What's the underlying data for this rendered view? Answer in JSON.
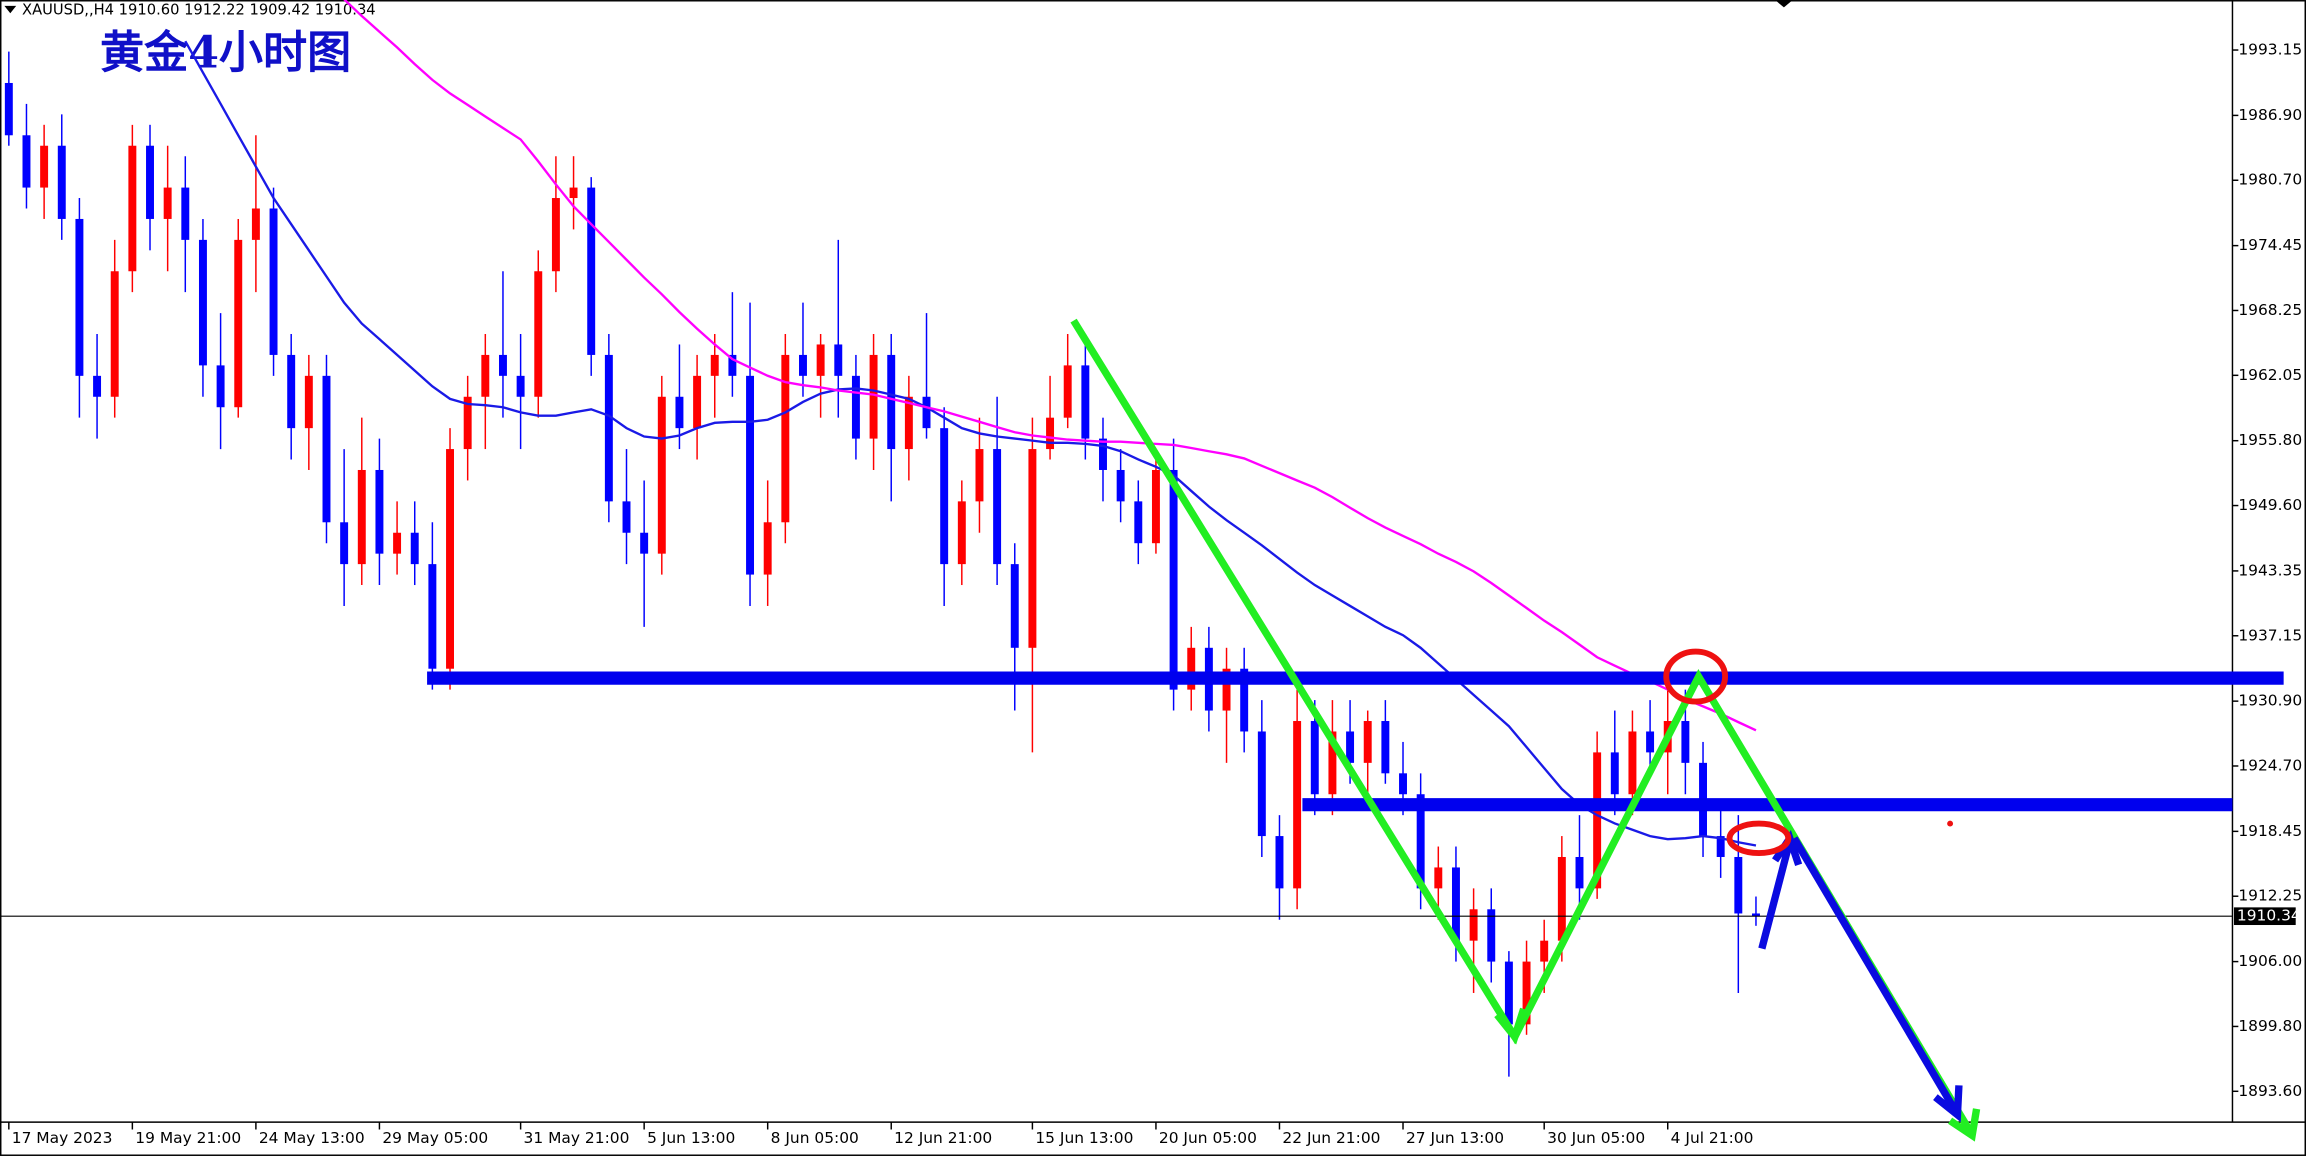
{
  "chart_data": {
    "type": "candlestick",
    "header": "XAUUSD,,H4  1910.60 1912.22 1909.42 1910.34",
    "title": "黄金4小时图",
    "up_color": "#ff0000",
    "down_color": "#0000ff",
    "xlim": [
      -0.5,
      126
    ],
    "ylim": [
      1890.65,
      1997.93
    ],
    "xticks": [
      {
        "value": 0,
        "label": "17 May 2023"
      },
      {
        "value": 7,
        "label": "19 May 21:00"
      },
      {
        "value": 14,
        "label": "24 May 13:00"
      },
      {
        "value": 21,
        "label": "29 May 05:00"
      },
      {
        "value": 29,
        "label": "31 May 21:00"
      },
      {
        "value": 36,
        "label": "5 Jun 13:00"
      },
      {
        "value": 43,
        "label": "8 Jun 05:00"
      },
      {
        "value": 50,
        "label": "12 Jun 21:00"
      },
      {
        "value": 58,
        "label": "15 Jun 13:00"
      },
      {
        "value": 65,
        "label": "20 Jun 05:00"
      },
      {
        "value": 72,
        "label": "22 Jun 21:00"
      },
      {
        "value": 79,
        "label": "27 Jun 13:00"
      },
      {
        "value": 87,
        "label": "30 Jun 05:00"
      },
      {
        "value": 94,
        "label": "4 Jul 21:00"
      }
    ],
    "yticks": [
      1993.15,
      {
        "value": 1986.9,
        "label": "1986.90"
      },
      {
        "value": 1980.7,
        "label": "1980.70"
      },
      1974.45,
      1968.25,
      1962.05,
      {
        "value": 1955.8,
        "label": "1955.80"
      },
      {
        "value": 1949.6,
        "label": "1949.60"
      },
      1943.35,
      1937.15,
      {
        "value": 1930.9,
        "label": "1930.90"
      },
      {
        "value": 1924.7,
        "label": "1924.70"
      },
      1918.45,
      1912.25,
      {
        "value": 1906,
        "label": "1906.00"
      },
      {
        "value": 1899.8,
        "label": "1899.80"
      },
      {
        "value": 1893.6,
        "label": "1893.60"
      }
    ],
    "last_price": 1910.34,
    "candles": [
      [
        1990,
        1993,
        1984,
        1985
      ],
      [
        1985,
        1988,
        1978,
        1980
      ],
      [
        1980,
        1986,
        1977,
        1984
      ],
      [
        1984,
        1987,
        1975,
        1977
      ],
      [
        1977,
        1979,
        1958,
        1962
      ],
      [
        1962,
        1966,
        1956,
        1960
      ],
      [
        1960,
        1975,
        1958,
        1972
      ],
      [
        1972,
        1986,
        1970,
        1984
      ],
      [
        1984,
        1986,
        1974,
        1977
      ],
      [
        1977,
        1984,
        1972,
        1980
      ],
      [
        1980,
        1983,
        1970,
        1975
      ],
      [
        1975,
        1977,
        1960,
        1963
      ],
      [
        1963,
        1968,
        1955,
        1959
      ],
      [
        1959,
        1977,
        1958,
        1975
      ],
      [
        1975,
        1985,
        1970,
        1978
      ],
      [
        1978,
        1980,
        1962,
        1964
      ],
      [
        1964,
        1966,
        1954,
        1957
      ],
      [
        1957,
        1964,
        1953,
        1962
      ],
      [
        1962,
        1964,
        1946,
        1948
      ],
      [
        1948,
        1955,
        1940,
        1944
      ],
      [
        1944,
        1958,
        1942,
        1953
      ],
      [
        1953,
        1956,
        1942,
        1945
      ],
      [
        1945,
        1950,
        1943,
        1947
      ],
      [
        1947,
        1950,
        1942,
        1944
      ],
      [
        1944,
        1948,
        1932,
        1934
      ],
      [
        1934,
        1957,
        1932,
        1955
      ],
      [
        1955,
        1962,
        1952,
        1960
      ],
      [
        1960,
        1966,
        1955,
        1964
      ],
      [
        1964,
        1972,
        1958,
        1962
      ],
      [
        1962,
        1966,
        1955,
        1960
      ],
      [
        1960,
        1974,
        1958,
        1972
      ],
      [
        1972,
        1983,
        1970,
        1979
      ],
      [
        1979,
        1983,
        1976,
        1980
      ],
      [
        1980,
        1981,
        1962,
        1964
      ],
      [
        1964,
        1966,
        1948,
        1950
      ],
      [
        1950,
        1955,
        1944,
        1947
      ],
      [
        1947,
        1952,
        1938,
        1945
      ],
      [
        1945,
        1962,
        1943,
        1960
      ],
      [
        1960,
        1965,
        1955,
        1957
      ],
      [
        1957,
        1964,
        1954,
        1962
      ],
      [
        1962,
        1966,
        1958,
        1964
      ],
      [
        1964,
        1970,
        1960,
        1962
      ],
      [
        1962,
        1969,
        1940,
        1943
      ],
      [
        1943,
        1952,
        1940,
        1948
      ],
      [
        1948,
        1966,
        1946,
        1964
      ],
      [
        1964,
        1969,
        1960,
        1962
      ],
      [
        1962,
        1966,
        1958,
        1965
      ],
      [
        1965,
        1975,
        1958,
        1962
      ],
      [
        1962,
        1964,
        1954,
        1956
      ],
      [
        1956,
        1966,
        1953,
        1964
      ],
      [
        1964,
        1966,
        1950,
        1955
      ],
      [
        1955,
        1962,
        1952,
        1960
      ],
      [
        1960,
        1968,
        1956,
        1957
      ],
      [
        1957,
        1959,
        1940,
        1944
      ],
      [
        1944,
        1952,
        1942,
        1950
      ],
      [
        1950,
        1958,
        1947,
        1955
      ],
      [
        1955,
        1960,
        1942,
        1944
      ],
      [
        1944,
        1946,
        1930,
        1936
      ],
      [
        1936,
        1958,
        1926,
        1955
      ],
      [
        1955,
        1962,
        1954,
        1958
      ],
      [
        1958,
        1966,
        1957,
        1963
      ],
      [
        1963,
        1966,
        1954,
        1956
      ],
      [
        1956,
        1958,
        1950,
        1953
      ],
      [
        1953,
        1955,
        1948,
        1950
      ],
      [
        1950,
        1952,
        1944,
        1946
      ],
      [
        1946,
        1955,
        1945,
        1953
      ],
      [
        1953,
        1956,
        1930,
        1932
      ],
      [
        1932,
        1938,
        1930,
        1936
      ],
      [
        1936,
        1938,
        1928,
        1930
      ],
      [
        1930,
        1936,
        1925,
        1934
      ],
      [
        1934,
        1936,
        1926,
        1928
      ],
      [
        1928,
        1931,
        1916,
        1918
      ],
      [
        1918,
        1920,
        1910,
        1913
      ],
      [
        1913,
        1932,
        1911,
        1929
      ],
      [
        1929,
        1931,
        1920,
        1922
      ],
      [
        1922,
        1931,
        1920,
        1928
      ],
      [
        1928,
        1931,
        1923,
        1925
      ],
      [
        1925,
        1930,
        1922,
        1929
      ],
      [
        1929,
        1931,
        1923,
        1924
      ],
      [
        1924,
        1927,
        1920,
        1922
      ],
      [
        1922,
        1924,
        1911,
        1913
      ],
      [
        1913,
        1917,
        1910,
        1915
      ],
      [
        1915,
        1917,
        1906,
        1908
      ],
      [
        1908,
        1913,
        1903,
        1911
      ],
      [
        1911,
        1913,
        1904,
        1906
      ],
      [
        1906,
        1907,
        1895,
        1900
      ],
      [
        1900,
        1908,
        1899,
        1906
      ],
      [
        1906,
        1910,
        1903,
        1908
      ],
      [
        1908,
        1918,
        1906,
        1916
      ],
      [
        1916,
        1920,
        1910,
        1913
      ],
      [
        1913,
        1928,
        1912,
        1926
      ],
      [
        1926,
        1930,
        1920,
        1922
      ],
      [
        1922,
        1930,
        1920,
        1928
      ],
      [
        1928,
        1931,
        1924,
        1926
      ],
      [
        1926,
        1932,
        1922,
        1929
      ],
      [
        1929,
        1932,
        1922,
        1925
      ],
      [
        1925,
        1927,
        1916,
        1918
      ],
      [
        1918,
        1921,
        1914,
        1916
      ],
      [
        1916,
        1920,
        1903,
        1910.6
      ],
      [
        1910.6,
        1912.22,
        1909.42,
        1910.34
      ]
    ],
    "series": [
      {
        "color": "#1a1ae6",
        "values": [
          null,
          null,
          null,
          null,
          null,
          null,
          null,
          null,
          null,
          null,
          1994,
          1991,
          1988,
          1985,
          1982,
          1979,
          1976.5,
          1974,
          1971.5,
          1969,
          1967,
          1965.5,
          1964,
          1962.5,
          1961,
          1959.8,
          1959.3,
          1959.2,
          1959,
          1958.5,
          1958.2,
          1958.2,
          1958.5,
          1958.8,
          1958.2,
          1957,
          1956.2,
          1956,
          1956.3,
          1957,
          1957.5,
          1957.6,
          1957.6,
          1957.8,
          1958.5,
          1959.5,
          1960.3,
          1960.7,
          1960.8,
          1960.6,
          1960.2,
          1959.8,
          1959,
          1958,
          1957,
          1956.5,
          1956.2,
          1956,
          1955.8,
          1955.6,
          1955.6,
          1955.5,
          1955.3,
          1954.8,
          1954,
          1953.3,
          1952.5,
          1951,
          1949.5,
          1948.2,
          1947,
          1945.8,
          1944.5,
          1943.2,
          1942,
          1941,
          1940,
          1939,
          1938,
          1937.2,
          1936,
          1934.5,
          1933,
          1931.5,
          1930,
          1928.5,
          1926.5,
          1924.5,
          1922.5,
          1921,
          1920,
          1919.2,
          1918.6,
          1918,
          1917.7,
          1917.8,
          1918,
          1917.8,
          1917.4,
          1917.1
        ]
      },
      {
        "color": "#ff00ff",
        "values": [
          null,
          null,
          null,
          null,
          null,
          null,
          null,
          null,
          null,
          null,
          null,
          null,
          null,
          null,
          null,
          null,
          null,
          null,
          null,
          1998,
          1996.4,
          1994.9,
          1993.4,
          1991.8,
          1990.3,
          1989,
          1987.9,
          1986.8,
          1985.7,
          1984.6,
          1982.5,
          1980.3,
          1978.2,
          1976.5,
          1974.8,
          1973.1,
          1971.4,
          1969.8,
          1968.1,
          1966.5,
          1965,
          1963.6,
          1962.8,
          1962,
          1961.4,
          1961.1,
          1960.9,
          1960.6,
          1960.4,
          1960.2,
          1959.8,
          1959.4,
          1959,
          1958.6,
          1958.1,
          1957.6,
          1957.1,
          1956.6,
          1956.3,
          1956.1,
          1955.9,
          1955.8,
          1955.7,
          1955.7,
          1955.6,
          1955.5,
          1955.4,
          1955.1,
          1954.8,
          1954.5,
          1954.1,
          1953.4,
          1952.7,
          1952,
          1951.3,
          1950.4,
          1949.4,
          1948.4,
          1947.5,
          1946.7,
          1945.9,
          1945,
          1944.2,
          1943.3,
          1942.2,
          1941,
          1939.8,
          1938.6,
          1937.5,
          1936.3,
          1935.1,
          1934.3,
          1933.5,
          1932.8,
          1932,
          1931.1,
          1930.4,
          1929.7,
          1928.9,
          1928.1
        ]
      }
    ],
    "levels": [
      {
        "value": 1933.1,
        "from": 23.7,
        "to": 128.9,
        "color": "#0000ee"
      },
      {
        "value": 1921.0,
        "from": 73.3,
        "to": 126,
        "color": "#0000ee"
      }
    ]
  }
}
